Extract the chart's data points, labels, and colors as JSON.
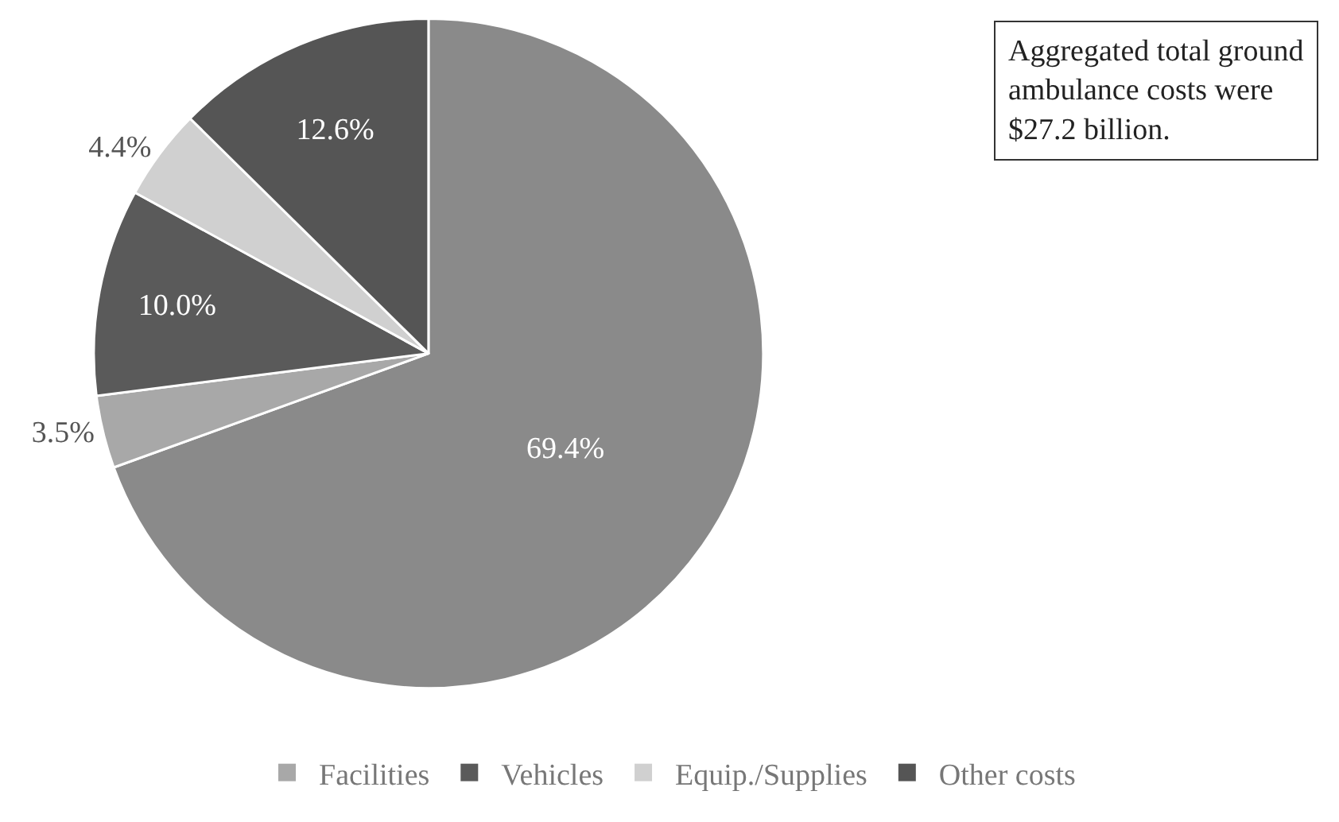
{
  "chart_data": {
    "type": "pie",
    "categories": [
      null,
      "Facilities",
      "Vehicles",
      "Equip./Supplies",
      "Other costs"
    ],
    "values": [
      69.4,
      3.5,
      10.0,
      4.4,
      12.6
    ],
    "colors": [
      "#8a8a8a",
      "#a8a8a8",
      "#5a5a5a",
      "#d0d0d0",
      "#555555"
    ],
    "value_labels": [
      "69.4%",
      "3.5%",
      "10.0%",
      "4.4%",
      "12.6%"
    ],
    "annotations": [
      "Aggregated total ground\nambulance costs were\n$27.2 billion."
    ],
    "legend": "bottom"
  }
}
